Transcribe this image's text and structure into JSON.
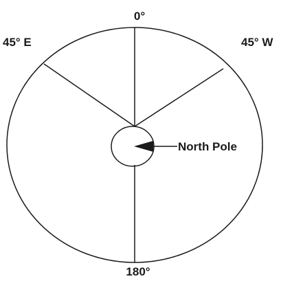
{
  "diagram": {
    "labels": {
      "top": "0°",
      "bottom": "180°",
      "left": "45° E",
      "right": "45° W",
      "pole": "North Pole"
    },
    "colors": {
      "stroke": "#1a1a1a",
      "background": "#ffffff"
    }
  }
}
